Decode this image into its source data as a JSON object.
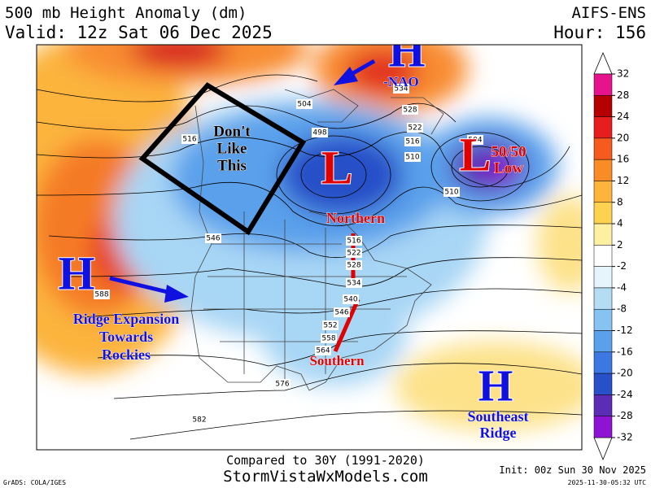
{
  "header": {
    "title": "500 mb Height Anomaly (dm)",
    "valid": "Valid: 12z Sat 06 Dec 2025",
    "model": "AIFS-ENS",
    "hour": "Hour: 156"
  },
  "annotations": [
    {
      "lines": [
        "H"
      ],
      "color": "#1010e0"
    },
    {
      "lines": [
        "-NAO"
      ],
      "color": "#1010e0"
    },
    {
      "lines": [
        "Don't",
        "Like",
        "This"
      ],
      "color": "#000000"
    },
    {
      "lines": [
        "L"
      ],
      "color": "#e00000"
    },
    {
      "lines": [
        "L"
      ],
      "color": "#e00000"
    },
    {
      "lines": [
        "50/50",
        "Low"
      ],
      "color": "#e00000"
    },
    {
      "lines": [
        "Northern"
      ],
      "color": "#e00000"
    },
    {
      "lines": [
        "Southern"
      ],
      "color": "#e00000"
    },
    {
      "lines": [
        "H"
      ],
      "color": "#1010e0"
    },
    {
      "lines": [
        "Ridge Expansion",
        "Towards",
        "Rockies"
      ],
      "color": "#1010e0"
    },
    {
      "lines": [
        "H"
      ],
      "color": "#1010e0"
    },
    {
      "lines": [
        "Southeast",
        "Ridge"
      ],
      "color": "#1010e0"
    }
  ],
  "contour_labels": [
    "516",
    "504",
    "498",
    "534",
    "528",
    "522",
    "516",
    "510",
    "504",
    "510",
    "546",
    "516",
    "522",
    "528",
    "534",
    "540",
    "546",
    "552",
    "558",
    "564",
    "588",
    "576",
    "582"
  ],
  "colorbar": {
    "ticks": [
      32,
      28,
      24,
      20,
      16,
      12,
      8,
      4,
      2,
      -2,
      -4,
      -8,
      -12,
      -16,
      -20,
      -24,
      -28,
      -32
    ],
    "colors": [
      "#e6148c",
      "#b40000",
      "#e61e1e",
      "#f55a1e",
      "#fa8c28",
      "#fcb43c",
      "#fcd250",
      "#fdf0a0",
      "#ffffff",
      "#e6f5fc",
      "#b4dcf5",
      "#87c3f0",
      "#5aa0eb",
      "#3c78e1",
      "#2850c8",
      "#5a2db4",
      "#8c14d2"
    ]
  },
  "footer": {
    "compared": "Compared to 30Y (1991-2020)",
    "site": "StormVistaWxModels.com",
    "grads": "GrADS: COLA/IGES",
    "init": "Init: 00z Sun 30 Nov 2025",
    "stamp": "2025-11-30-05:32 UTC"
  }
}
